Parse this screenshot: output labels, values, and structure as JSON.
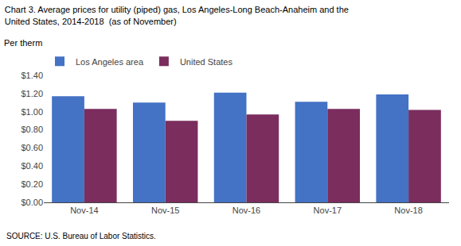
{
  "chart_data": {
    "type": "bar",
    "title": "Chart 3. Average prices for utility (piped) gas, Los Angeles-Long Beach-Anaheim and the",
    "subtitle": "United States, 2014-2018  (as of November)",
    "ylabel": "Per therm",
    "annotations": [
      "SOURCE: U.S. Bureau of Labor Statistics."
    ],
    "categories": [
      "Nov-14",
      "Nov-15",
      "Nov-16",
      "Nov-17",
      "Nov-18"
    ],
    "series": [
      {
        "name": "Los Angeles area",
        "color": "#4472C4",
        "values": [
          1.17,
          1.1,
          1.21,
          1.11,
          1.19
        ]
      },
      {
        "name": "United States",
        "color": "#7B2D5E",
        "values": [
          1.03,
          0.9,
          0.97,
          1.03,
          1.02
        ]
      }
    ],
    "ylim": [
      0,
      1.4
    ],
    "yticks": [
      {
        "value": 0.0,
        "label": "$0.00"
      },
      {
        "value": 0.2,
        "label": "$0.20"
      },
      {
        "value": 0.4,
        "label": "$0.40"
      },
      {
        "value": 0.6,
        "label": "$0.60"
      },
      {
        "value": 0.8,
        "label": "$0.80"
      },
      {
        "value": 1.0,
        "label": "$1.00"
      },
      {
        "value": 1.2,
        "label": "$1.20"
      },
      {
        "value": 1.4,
        "label": "$1.40"
      }
    ],
    "grid": false,
    "legend": "upper left"
  }
}
